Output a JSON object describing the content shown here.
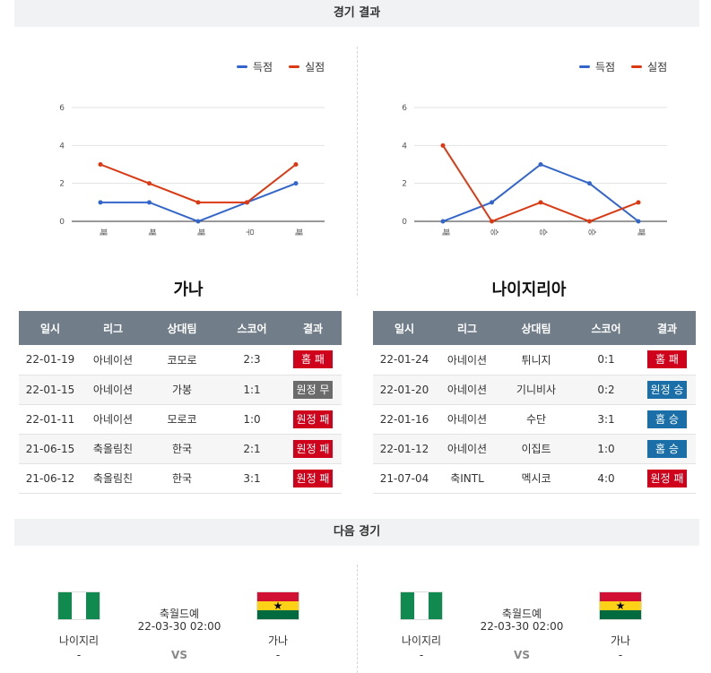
{
  "sections": {
    "results_title": "경기 결과",
    "next_title": "다음 경기"
  },
  "legend": {
    "scored": "득점",
    "conceded": "실점"
  },
  "colors": {
    "scored": "#3366cc",
    "conceded": "#dc3912",
    "loss": "#d0021b",
    "win": "#1a6fa8",
    "draw": "#6b6b6b"
  },
  "chart_data": [
    {
      "type": "line",
      "categories": [
        "패",
        "패",
        "패",
        "무",
        "패"
      ],
      "series": [
        {
          "name": "득점",
          "values": [
            1,
            1,
            0,
            1,
            2
          ]
        },
        {
          "name": "실점",
          "values": [
            3,
            2,
            1,
            1,
            3
          ]
        }
      ],
      "ylim": [
        0,
        6
      ],
      "yticks": [
        "0",
        "2",
        "4",
        "6"
      ],
      "grid": true,
      "legend": "top-right"
    },
    {
      "type": "line",
      "categories": [
        "패",
        "승",
        "승",
        "승",
        "패"
      ],
      "series": [
        {
          "name": "득점",
          "values": [
            0,
            1,
            3,
            2,
            0
          ]
        },
        {
          "name": "실점",
          "values": [
            4,
            0,
            1,
            0,
            1
          ]
        }
      ],
      "ylim": [
        0,
        6
      ],
      "yticks": [
        "0",
        "2",
        "4",
        "6"
      ],
      "grid": true,
      "legend": "top-right"
    }
  ],
  "teams": [
    {
      "name": "가나",
      "headers": [
        "일시",
        "리그",
        "상대팀",
        "스코어",
        "결과"
      ],
      "rows": [
        {
          "date": "22-01-19",
          "league": "아네이션",
          "opponent": "코모로",
          "score": "2:3",
          "result": "홈 패",
          "type": "loss"
        },
        {
          "date": "22-01-15",
          "league": "아네이션",
          "opponent": "가봉",
          "score": "1:1",
          "result": "원정 무",
          "type": "draw"
        },
        {
          "date": "22-01-11",
          "league": "아네이션",
          "opponent": "모로코",
          "score": "1:0",
          "result": "원정 패",
          "type": "loss"
        },
        {
          "date": "21-06-15",
          "league": "축올림친",
          "opponent": "한국",
          "score": "2:1",
          "result": "원정 패",
          "type": "loss"
        },
        {
          "date": "21-06-12",
          "league": "축올림친",
          "opponent": "한국",
          "score": "3:1",
          "result": "원정 패",
          "type": "loss"
        }
      ]
    },
    {
      "name": "나이지리아",
      "headers": [
        "일시",
        "리그",
        "상대팀",
        "스코어",
        "결과"
      ],
      "rows": [
        {
          "date": "22-01-24",
          "league": "아네이션",
          "opponent": "튀니지",
          "score": "0:1",
          "result": "홈 패",
          "type": "loss"
        },
        {
          "date": "22-01-20",
          "league": "아네이션",
          "opponent": "기니비사",
          "score": "0:2",
          "result": "원정 승",
          "type": "win"
        },
        {
          "date": "22-01-16",
          "league": "아네이션",
          "opponent": "수단",
          "score": "3:1",
          "result": "홈 승",
          "type": "win"
        },
        {
          "date": "22-01-12",
          "league": "아네이션",
          "opponent": "이집트",
          "score": "1:0",
          "result": "홈 승",
          "type": "win"
        },
        {
          "date": "21-07-04",
          "league": "축INTL",
          "opponent": "멕시코",
          "score": "4:0",
          "result": "원정 패",
          "type": "loss"
        }
      ]
    }
  ],
  "next_matches": [
    {
      "home": "나이지리",
      "home_sub": "-",
      "away": "가나",
      "away_sub": "-",
      "league": "축월드예",
      "datetime": "22-03-30 02:00",
      "vs": "VS"
    },
    {
      "home": "나이지리",
      "home_sub": "-",
      "away": "가나",
      "away_sub": "-",
      "league": "축월드예",
      "datetime": "22-03-30 02:00",
      "vs": "VS"
    }
  ]
}
